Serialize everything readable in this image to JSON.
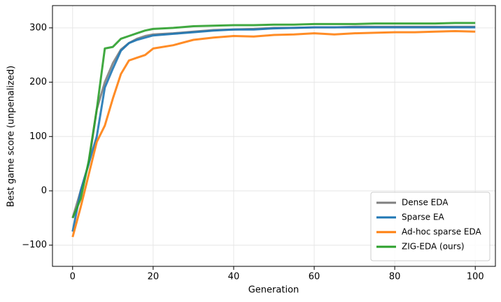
{
  "chart_data": {
    "type": "line",
    "xlabel": "Generation",
    "ylabel": "Best game score (unpenalized)",
    "x": [
      0,
      2,
      4,
      6,
      8,
      10,
      12,
      14,
      16,
      18,
      20,
      25,
      30,
      35,
      40,
      45,
      50,
      55,
      60,
      65,
      70,
      75,
      80,
      85,
      90,
      95,
      100
    ],
    "series": [
      {
        "name": "Dense EDA",
        "color": "#7f7f7f",
        "values": [
          -50,
          0,
          50,
          150,
          200,
          235,
          260,
          272,
          280,
          285,
          288,
          290,
          293,
          296,
          297,
          298,
          300,
          300,
          301,
          301,
          302,
          302,
          302,
          302,
          302,
          302,
          302
        ]
      },
      {
        "name": "Sparse EA",
        "color": "#1f77b4",
        "values": [
          -75,
          0,
          50,
          100,
          190,
          225,
          258,
          272,
          278,
          282,
          286,
          289,
          292,
          295,
          297,
          297,
          299,
          300,
          301,
          301,
          301,
          301,
          301,
          301,
          301,
          301,
          301
        ]
      },
      {
        "name": "Ad-hoc sparse EDA",
        "color": "#ff7f0e",
        "values": [
          -85,
          -30,
          30,
          90,
          120,
          170,
          215,
          240,
          245,
          250,
          262,
          268,
          278,
          282,
          285,
          284,
          287,
          288,
          290,
          288,
          290,
          291,
          292,
          292,
          293,
          294,
          293
        ]
      },
      {
        "name": "ZIG-EDA (ours)",
        "color": "#2ca02c",
        "values": [
          -50,
          -15,
          55,
          150,
          262,
          265,
          280,
          285,
          290,
          295,
          298,
          300,
          303,
          304,
          305,
          305,
          306,
          306,
          307,
          307,
          307,
          308,
          308,
          308,
          308,
          309,
          309
        ]
      }
    ],
    "xlim": [
      -5,
      105
    ],
    "ylim": [
      -139,
      341
    ],
    "xticks": [
      0,
      20,
      40,
      60,
      80,
      100
    ],
    "yticks": [
      {
        "value": -100,
        "label": "−100"
      },
      0,
      100,
      200,
      300
    ],
    "grid": true,
    "legend": "lower-right"
  }
}
